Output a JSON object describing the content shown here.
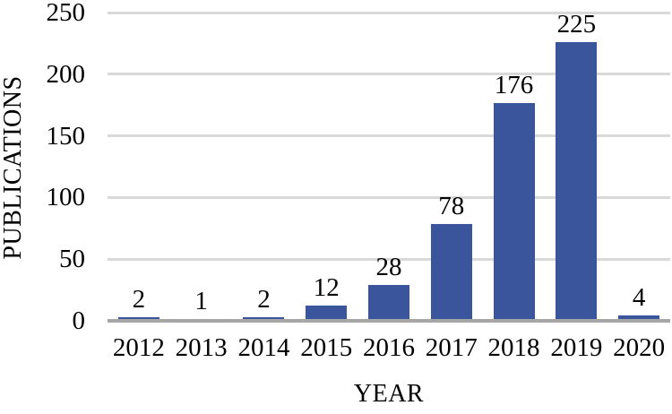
{
  "chart_data": {
    "type": "bar",
    "title": "",
    "categories": [
      "2012",
      "2013",
      "2014",
      "2015",
      "2016",
      "2017",
      "2018",
      "2019",
      "2020"
    ],
    "values": [
      2,
      1,
      2,
      12,
      28,
      78,
      176,
      225,
      4
    ],
    "xlabel": "YEAR",
    "ylabel": "PUBLICATIONS",
    "ylim": [
      0,
      250
    ],
    "yticks": [
      0,
      50,
      100,
      150,
      200,
      250
    ],
    "grid": "horizontal",
    "legend": "none",
    "bar_color": "#3a559c",
    "gridline_color": "#d9d9d9",
    "axis_line_color": "#a6a6a6",
    "label_color": "#000000"
  }
}
